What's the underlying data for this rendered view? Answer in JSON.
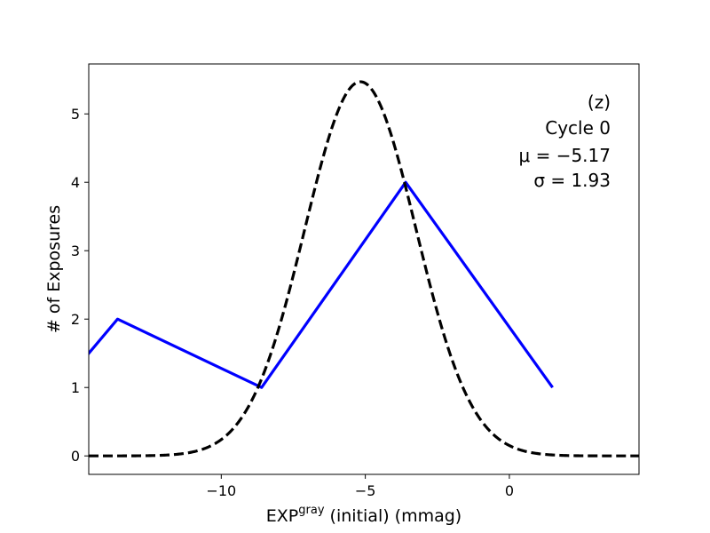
{
  "chart_data": {
    "type": "line",
    "xlabel_main": "EXP",
    "xlabel_sup": "gray",
    "xlabel_rest": " (initial) (mmag)",
    "ylabel": "# of Exposures",
    "xlim": [
      -14.6,
      4.5
    ],
    "ylim": [
      -0.27,
      5.73
    ],
    "x_ticks": [
      -10,
      -5,
      0
    ],
    "x_tick_labels": [
      "−10",
      "−5",
      "0"
    ],
    "y_ticks": [
      0,
      1,
      2,
      3,
      4,
      5
    ],
    "y_tick_labels": [
      "0",
      "1",
      "2",
      "3",
      "4",
      "5"
    ],
    "grid": false,
    "annotations": {
      "filter": "(z)",
      "cycle": "Cycle 0",
      "mu": "μ = −5.17",
      "sigma": "σ = 1.93"
    },
    "series": [
      {
        "style": "solid",
        "color": "#0000ff",
        "points": [
          [
            -15.6,
            1.0
          ],
          [
            -13.6,
            2.0
          ],
          [
            -8.6,
            1.0
          ],
          [
            -3.6,
            4.0
          ],
          [
            1.5,
            1.0
          ]
        ]
      },
      {
        "style": "dashed",
        "color": "#000000",
        "function": "gaussian",
        "mu": -5.17,
        "sigma": 1.93,
        "amplitude": 5.47
      }
    ]
  }
}
